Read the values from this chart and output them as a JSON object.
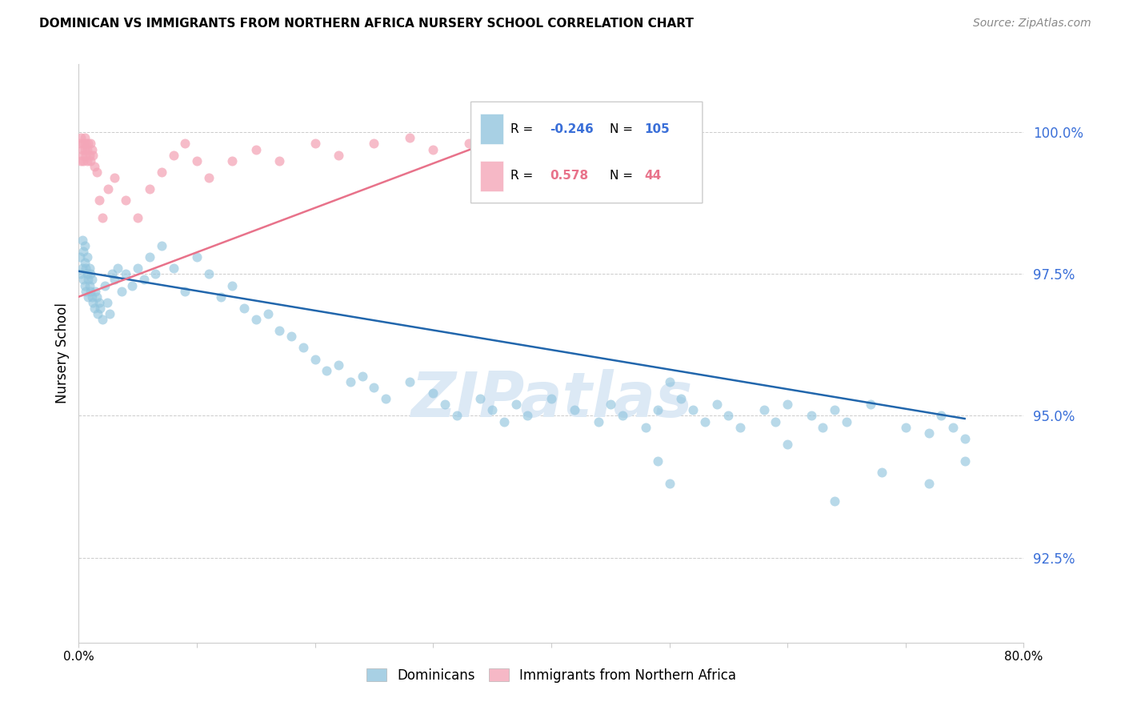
{
  "title": "DOMINICAN VS IMMIGRANTS FROM NORTHERN AFRICA NURSERY SCHOOL CORRELATION CHART",
  "source": "Source: ZipAtlas.com",
  "ylabel": "Nursery School",
  "yticks": [
    92.5,
    95.0,
    97.5,
    100.0
  ],
  "ytick_labels": [
    "92.5%",
    "95.0%",
    "97.5%",
    "100.0%"
  ],
  "xmin": 0.0,
  "xmax": 0.8,
  "ymin": 91.0,
  "ymax": 101.2,
  "blue_color": "#92c5de",
  "pink_color": "#f4a6b8",
  "blue_line_color": "#2166ac",
  "pink_line_color": "#e8728a",
  "watermark": "ZIPatlas",
  "legend_R1": "-0.246",
  "legend_N1": "105",
  "legend_R2": "0.578",
  "legend_N2": "44",
  "blue_trendline_x": [
    0.0,
    0.75
  ],
  "blue_trendline_y": [
    97.55,
    94.95
  ],
  "pink_trendline_x": [
    0.0,
    0.37
  ],
  "pink_trendline_y": [
    97.1,
    100.0
  ],
  "dom_x": [
    0.001,
    0.002,
    0.003,
    0.003,
    0.004,
    0.004,
    0.005,
    0.005,
    0.005,
    0.006,
    0.006,
    0.007,
    0.007,
    0.008,
    0.008,
    0.009,
    0.009,
    0.01,
    0.01,
    0.011,
    0.011,
    0.012,
    0.013,
    0.014,
    0.015,
    0.016,
    0.017,
    0.018,
    0.02,
    0.022,
    0.024,
    0.026,
    0.028,
    0.03,
    0.033,
    0.036,
    0.04,
    0.045,
    0.05,
    0.055,
    0.06,
    0.065,
    0.07,
    0.08,
    0.09,
    0.1,
    0.11,
    0.12,
    0.13,
    0.14,
    0.15,
    0.16,
    0.17,
    0.18,
    0.19,
    0.2,
    0.21,
    0.22,
    0.23,
    0.24,
    0.25,
    0.26,
    0.28,
    0.3,
    0.31,
    0.32,
    0.34,
    0.35,
    0.36,
    0.37,
    0.38,
    0.4,
    0.42,
    0.44,
    0.45,
    0.46,
    0.48,
    0.49,
    0.5,
    0.51,
    0.52,
    0.53,
    0.54,
    0.55,
    0.56,
    0.58,
    0.59,
    0.6,
    0.62,
    0.63,
    0.64,
    0.65,
    0.67,
    0.7,
    0.72,
    0.73,
    0.74,
    0.75,
    0.5,
    0.49,
    0.6,
    0.64,
    0.68,
    0.72,
    0.75
  ],
  "dom_y": [
    97.8,
    97.5,
    97.6,
    98.1,
    97.4,
    97.9,
    97.3,
    97.7,
    98.0,
    97.2,
    97.6,
    97.5,
    97.8,
    97.1,
    97.4,
    97.3,
    97.6,
    97.2,
    97.5,
    97.1,
    97.4,
    97.0,
    96.9,
    97.2,
    97.1,
    96.8,
    97.0,
    96.9,
    96.7,
    97.3,
    97.0,
    96.8,
    97.5,
    97.4,
    97.6,
    97.2,
    97.5,
    97.3,
    97.6,
    97.4,
    97.8,
    97.5,
    98.0,
    97.6,
    97.2,
    97.8,
    97.5,
    97.1,
    97.3,
    96.9,
    96.7,
    96.8,
    96.5,
    96.4,
    96.2,
    96.0,
    95.8,
    95.9,
    95.6,
    95.7,
    95.5,
    95.3,
    95.6,
    95.4,
    95.2,
    95.0,
    95.3,
    95.1,
    94.9,
    95.2,
    95.0,
    95.3,
    95.1,
    94.9,
    95.2,
    95.0,
    94.8,
    95.1,
    95.6,
    95.3,
    95.1,
    94.9,
    95.2,
    95.0,
    94.8,
    95.1,
    94.9,
    95.2,
    95.0,
    94.8,
    95.1,
    94.9,
    95.2,
    94.8,
    94.7,
    95.0,
    94.8,
    94.6,
    93.8,
    94.2,
    94.5,
    93.5,
    94.0,
    93.8,
    94.2
  ],
  "na_x": [
    0.001,
    0.002,
    0.002,
    0.003,
    0.003,
    0.004,
    0.004,
    0.005,
    0.005,
    0.006,
    0.006,
    0.007,
    0.007,
    0.008,
    0.009,
    0.01,
    0.01,
    0.011,
    0.012,
    0.013,
    0.015,
    0.017,
    0.02,
    0.025,
    0.03,
    0.04,
    0.05,
    0.06,
    0.07,
    0.08,
    0.09,
    0.1,
    0.11,
    0.13,
    0.15,
    0.17,
    0.2,
    0.22,
    0.25,
    0.28,
    0.3,
    0.33,
    0.35,
    0.37
  ],
  "na_y": [
    99.8,
    99.5,
    99.9,
    99.7,
    99.6,
    99.8,
    99.5,
    99.7,
    99.9,
    99.6,
    99.8,
    99.5,
    99.7,
    99.8,
    99.6,
    99.5,
    99.8,
    99.7,
    99.6,
    99.4,
    99.3,
    98.8,
    98.5,
    99.0,
    99.2,
    98.8,
    98.5,
    99.0,
    99.3,
    99.6,
    99.8,
    99.5,
    99.2,
    99.5,
    99.7,
    99.5,
    99.8,
    99.6,
    99.8,
    99.9,
    99.7,
    99.8,
    99.9,
    100.0
  ]
}
